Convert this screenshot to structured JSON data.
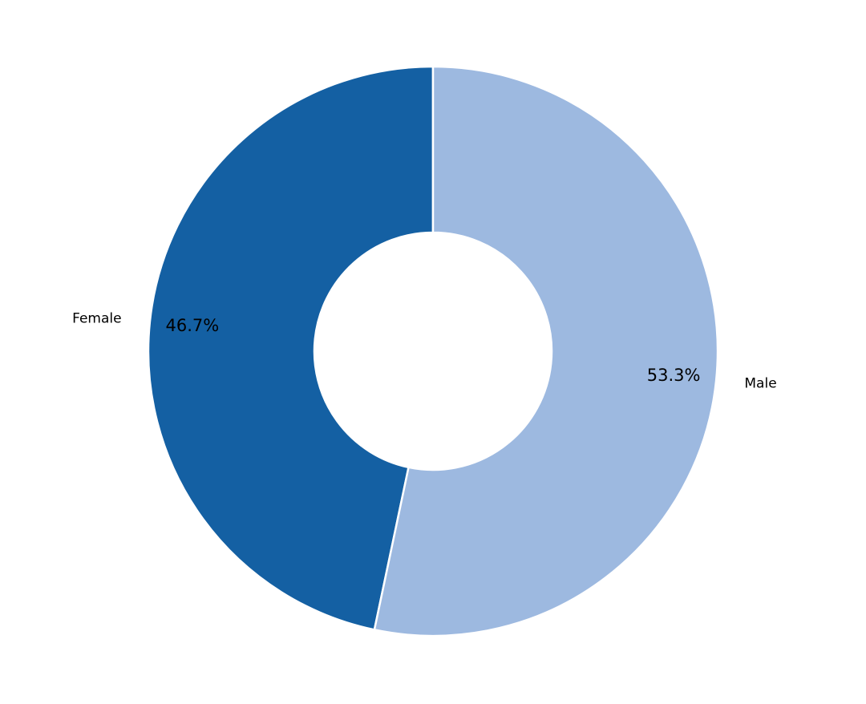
{
  "chart_data": {
    "type": "donut",
    "categories": [
      "Female",
      "Male"
    ],
    "values": [
      46.7,
      53.3
    ],
    "value_labels": [
      "46.7%",
      "53.3%"
    ],
    "colors": [
      "#1460a3",
      "#9db9e0"
    ]
  }
}
